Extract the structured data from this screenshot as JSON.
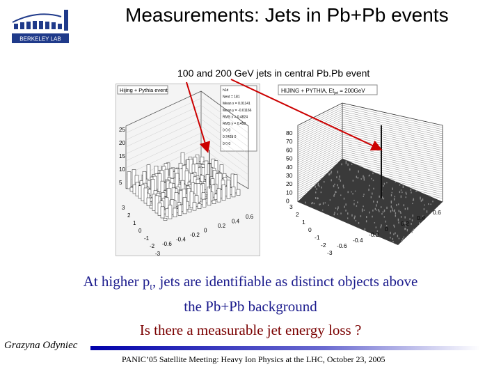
{
  "slide": {
    "title": "Measurements: Jets in Pb+Pb events",
    "annotation": "100 and 200 GeV jets in central Pb.Pb event",
    "caption": {
      "line1_before": "At higher p",
      "line1_sub": "t",
      "line1_after": ", jets are identifiable as distinct objects above",
      "line2": "the Pb+Pb background"
    },
    "question": "Is there a measurable jet energy loss ?",
    "author": "Grazyna Odyniec",
    "footer": "PANIC’05 Satellite Meeting: Heavy Ion Physics at the LHC, October 23, 2005"
  },
  "logo": {
    "text": "BERKELEY LAB"
  },
  "plot_left": {
    "label": "Hijing + Pythia event",
    "stats": [
      "h1d",
      "Nent = 181",
      "Mean x = 0.01141",
      "Mean y = -0.01166",
      "RMS x = 0.4824",
      "RMS y = 0.458",
      "0  0  0",
      "0  2428  0",
      "0  0  0"
    ],
    "z_ticks": [
      "25",
      "20",
      "15",
      "10",
      "5"
    ],
    "y_ticks": [
      "3",
      "2",
      "1",
      "0",
      "-1",
      "-2",
      "-3"
    ],
    "x_ticks": [
      "-0.6",
      "-0.4",
      "-0.2",
      "0",
      "0.2",
      "0.4",
      "0.6"
    ]
  },
  "plot_right": {
    "label": "HIJING + PYTHIA, Et",
    "label_sub": "jet",
    "label_after": " = 200GeV",
    "z_ticks": [
      "80",
      "70",
      "60",
      "50",
      "40",
      "30",
      "20",
      "10",
      "0"
    ],
    "y_ticks": [
      "3",
      "2",
      "1",
      "0",
      "-1",
      "-2",
      "-3"
    ],
    "x_ticks": [
      "-0.6",
      "-0.4",
      "-0.2",
      "0",
      "0.2",
      "0.4",
      "0.6"
    ]
  },
  "colors": {
    "caption": "#1a1a8c",
    "question": "#7a0000",
    "arrow": "#cc0000",
    "rule": "#0000aa"
  }
}
